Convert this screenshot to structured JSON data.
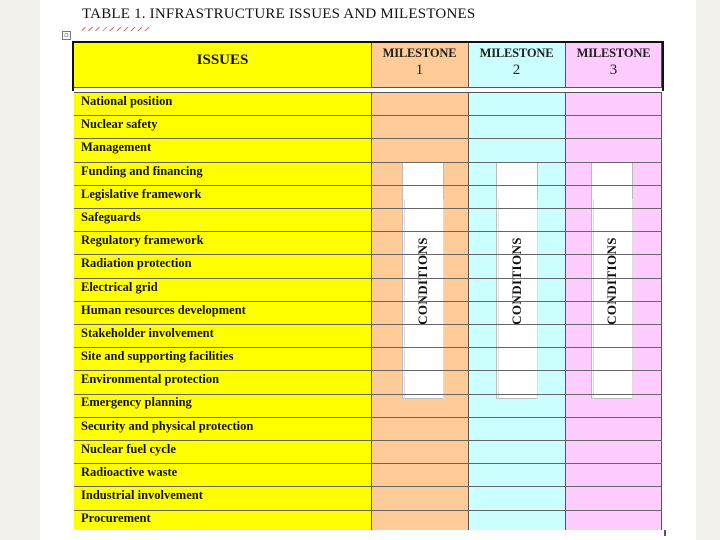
{
  "document": {
    "title": "TABLE 1. INFRASTRUCTURE ISSUES AND MILESTONES"
  },
  "table": {
    "issues_header": "ISSUES",
    "milestones": [
      {
        "label": "MILESTONE",
        "number": "1",
        "color": "#ffcc99"
      },
      {
        "label": "MILESTONE",
        "number": "2",
        "color": "#ccffff"
      },
      {
        "label": "MILESTONE",
        "number": "3",
        "color": "#ffccff"
      }
    ],
    "issues_color": "#ffff00",
    "conditions_label": "CONDITIONS",
    "issues": [
      "National position",
      "Nuclear safety",
      "Management",
      "Funding and financing",
      "Legislative framework",
      "Safeguards",
      "Regulatory framework",
      "Radiation protection",
      "Electrical grid",
      "Human resources development",
      "Stakeholder involvement",
      "Site and supporting facilities",
      "Environmental protection",
      "Emergency planning",
      "Security and physical protection",
      "Nuclear fuel cycle",
      "Radioactive waste",
      "Industrial involvement",
      "Procurement"
    ]
  },
  "icons": {
    "table_handle": "table-move-handle-icon"
  }
}
